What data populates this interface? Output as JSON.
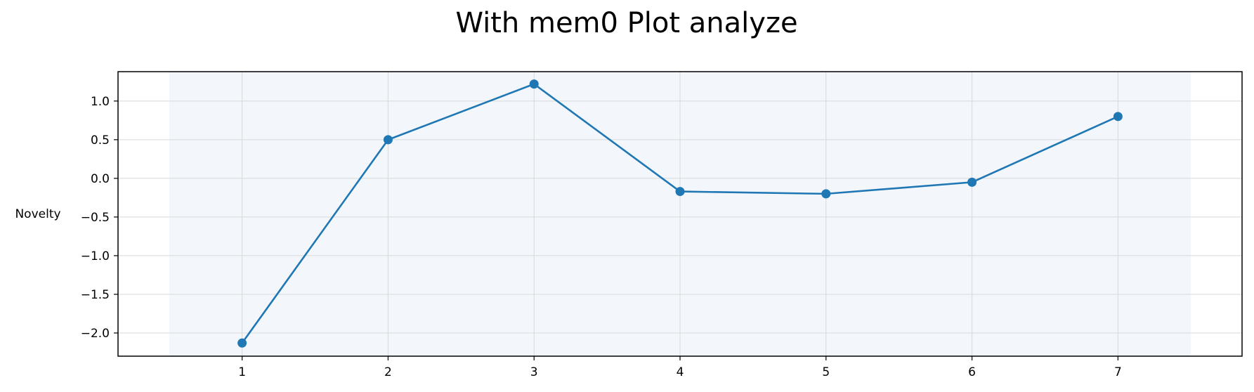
{
  "chart_data": {
    "type": "line",
    "title": "With mem0 Plot analyze",
    "xlabel": "",
    "ylabel": "Novelty",
    "x": [
      1,
      2,
      3,
      4,
      5,
      6,
      7
    ],
    "series": [
      {
        "values": [
          -2.13,
          0.5,
          1.22,
          -0.17,
          -0.2,
          -0.05,
          0.8
        ]
      }
    ],
    "xlim": [
      0.15,
      7.85
    ],
    "ylim": [
      -2.3,
      1.38
    ],
    "xticks": [
      "1",
      "2",
      "3",
      "4",
      "5",
      "6",
      "7"
    ],
    "yticks": [
      "1.0",
      "0.5",
      "0.0",
      "−0.5",
      "−1.0",
      "−1.5",
      "−2.0"
    ],
    "shaded_range_x": [
      0.5,
      7.5
    ],
    "grid": true,
    "colors": {
      "line": "#1f77b4",
      "marker": "#1f77b4",
      "shade": "#f3f7fc",
      "grid": "#d8d8d8",
      "axes": "#000000"
    }
  }
}
